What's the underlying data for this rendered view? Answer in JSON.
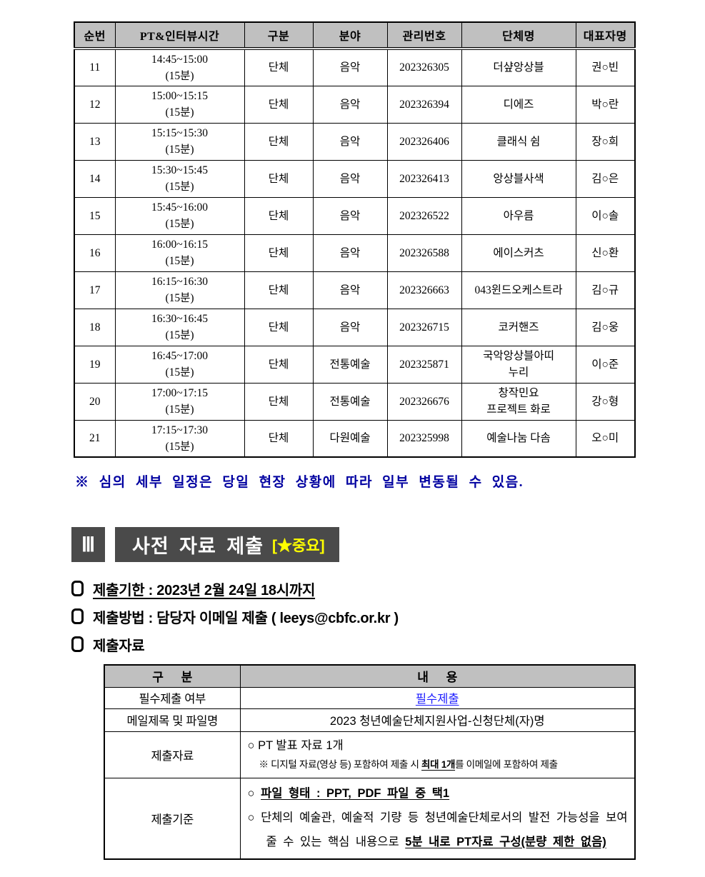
{
  "schedule_table": {
    "headers": [
      "순번",
      "PT&인터뷰시간",
      "구분",
      "분야",
      "관리번호",
      "단체명",
      "대표자명"
    ],
    "rows": [
      {
        "no": "11",
        "time": "14:45~15:00",
        "duration": "(15분)",
        "category": "단체",
        "field": "음악",
        "mgmt_no": "202326305",
        "org": "더샾앙상블",
        "rep": "권○빈"
      },
      {
        "no": "12",
        "time": "15:00~15:15",
        "duration": "(15분)",
        "category": "단체",
        "field": "음악",
        "mgmt_no": "202326394",
        "org": "디에즈",
        "rep": "박○란"
      },
      {
        "no": "13",
        "time": "15:15~15:30",
        "duration": "(15분)",
        "category": "단체",
        "field": "음악",
        "mgmt_no": "202326406",
        "org": "클래식 쉼",
        "rep": "장○희"
      },
      {
        "no": "14",
        "time": "15:30~15:45",
        "duration": "(15분)",
        "category": "단체",
        "field": "음악",
        "mgmt_no": "202326413",
        "org": "앙상블사색",
        "rep": "김○은"
      },
      {
        "no": "15",
        "time": "15:45~16:00",
        "duration": "(15분)",
        "category": "단체",
        "field": "음악",
        "mgmt_no": "202326522",
        "org": "아우름",
        "rep": "이○솔"
      },
      {
        "no": "16",
        "time": "16:00~16:15",
        "duration": "(15분)",
        "category": "단체",
        "field": "음악",
        "mgmt_no": "202326588",
        "org": "에이스커츠",
        "rep": "신○환"
      },
      {
        "no": "17",
        "time": "16:15~16:30",
        "duration": "(15분)",
        "category": "단체",
        "field": "음악",
        "mgmt_no": "202326663",
        "org": "043윈드오케스트라",
        "rep": "김○규"
      },
      {
        "no": "18",
        "time": "16:30~16:45",
        "duration": "(15분)",
        "category": "단체",
        "field": "음악",
        "mgmt_no": "202326715",
        "org": "코커핸즈",
        "rep": "김○웅"
      },
      {
        "no": "19",
        "time": "16:45~17:00",
        "duration": "(15분)",
        "category": "단체",
        "field": "전통예술",
        "mgmt_no": "202325871",
        "org": "국악앙상블아띠\n누리",
        "rep": "이○준"
      },
      {
        "no": "20",
        "time": "17:00~17:15",
        "duration": "(15분)",
        "category": "단체",
        "field": "전통예술",
        "mgmt_no": "202326676",
        "org": "창작민요\n프로젝트 화로",
        "rep": "강○형"
      },
      {
        "no": "21",
        "time": "17:15~17:30",
        "duration": "(15분)",
        "category": "단체",
        "field": "다원예술",
        "mgmt_no": "202325998",
        "org": "예술나눔 다솜",
        "rep": "오○미"
      }
    ]
  },
  "note": "※ 심의 세부 일정은 당일 현장 상황에 따라 일부 변동될 수 있음.",
  "section": {
    "numeral": "Ⅲ",
    "title": "사전 자료 제출",
    "importance": "[★중요]"
  },
  "bullets": [
    {
      "label": "제출기한 : 2023년 2월 24일 18시까지"
    },
    {
      "label": "제출방법 : 담당자 이메일 제출 ( leeys@cbfc.or.kr )"
    },
    {
      "label": "제출자료"
    }
  ],
  "submission_table": {
    "col_headers": [
      "구 분",
      "내 용"
    ],
    "row_required": {
      "label": "필수제출 여부",
      "value": "필수제출"
    },
    "row_mail": {
      "label": "메일제목 및 파일명",
      "value": "2023 청년예술단체지원사업-신청단체(자)명"
    },
    "row_materials": {
      "label": "제출자료",
      "item": {
        "bullet": "○",
        "text": "PT 발표 자료 1개"
      },
      "note": {
        "pre": "※ 디지털 자료(영상 등) 포함하여 제출 시 ",
        "em": "최대 1개",
        "post": "를 이메일에 포함하여 제출"
      }
    },
    "row_criteria": {
      "label": "제출기준",
      "item1": {
        "bullet": "○",
        "em": "파일 형태 : PPT, PDF 파일 중 택1"
      },
      "item2": {
        "bullet": "○",
        "pre": "단체의 예술관, 예술적 기량 등 청년예술단체로서의 발전 가능성을 보여줄 수 있는 핵심 내용으로 ",
        "em": "5분 내로 PT자료 구성(분량 제한 없음)"
      }
    }
  },
  "colors": {
    "header_gray": "#c0c0c0",
    "dark_box": "#4a4a4a",
    "note_navy": "#0000a0",
    "link_blue": "#1f1fff",
    "highlight_yellow": "#ffff00"
  }
}
